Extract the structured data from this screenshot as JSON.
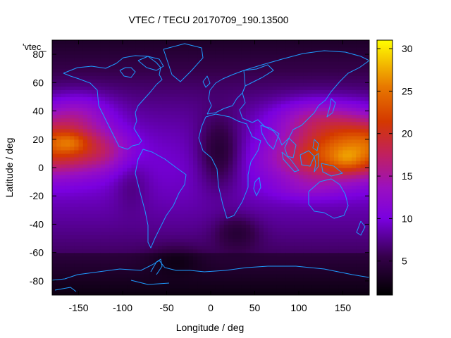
{
  "chart_data": {
    "type": "heatmap",
    "title": "VTEC / TECU 20170709_190.13500",
    "xlabel": "Longitude / deg",
    "ylabel": "Latitude / deg",
    "key_label": "'vtec_",
    "xlim": [
      -180,
      180
    ],
    "ylim": [
      -90,
      90
    ],
    "x_ticks": [
      -150,
      -100,
      -50,
      0,
      50,
      100,
      150
    ],
    "y_ticks": [
      -80,
      -60,
      -40,
      -20,
      0,
      20,
      40,
      60,
      80
    ],
    "cb_range": [
      1,
      31
    ],
    "cb_ticks": [
      5,
      10,
      15,
      20,
      25,
      30
    ],
    "grid": false,
    "colormap": "gnuplot (black-purple-red-yellow)",
    "coastline_color": "#1e9bff",
    "blobs": [
      {
        "lon": -180,
        "lat": 16,
        "slon": 55,
        "slat": 20,
        "v": 13
      },
      {
        "lon": -160,
        "lat": 18,
        "slon": 20,
        "slat": 7,
        "v": 4
      },
      {
        "lon": -120,
        "lat": 12,
        "slon": 35,
        "slat": 14,
        "v": 4
      },
      {
        "lon": -150,
        "lat": 40,
        "slon": 40,
        "slat": 14,
        "v": 4
      },
      {
        "lon": 180,
        "lat": 16,
        "slon": 55,
        "slat": 20,
        "v": 13
      },
      {
        "lon": 120,
        "lat": 8,
        "slon": 55,
        "slat": 18,
        "v": 9
      },
      {
        "lon": 155,
        "lat": 5,
        "slon": 20,
        "slat": 8,
        "v": 3
      },
      {
        "lon": 120,
        "lat": 35,
        "slon": 50,
        "slat": 14,
        "v": 6
      },
      {
        "lon": 110,
        "lat": -15,
        "slon": 40,
        "slat": 8,
        "v": 2
      },
      {
        "lon": 10,
        "lat": 10,
        "slon": 25,
        "slat": 25,
        "v": -5
      },
      {
        "lon": 30,
        "lat": -45,
        "slon": 25,
        "slat": 12,
        "v": -3
      },
      {
        "lon": -90,
        "lat": -10,
        "slon": 20,
        "slat": 20,
        "v": -2
      },
      {
        "lon": -40,
        "lat": -65,
        "slon": 30,
        "slat": 10,
        "v": -2
      }
    ]
  }
}
